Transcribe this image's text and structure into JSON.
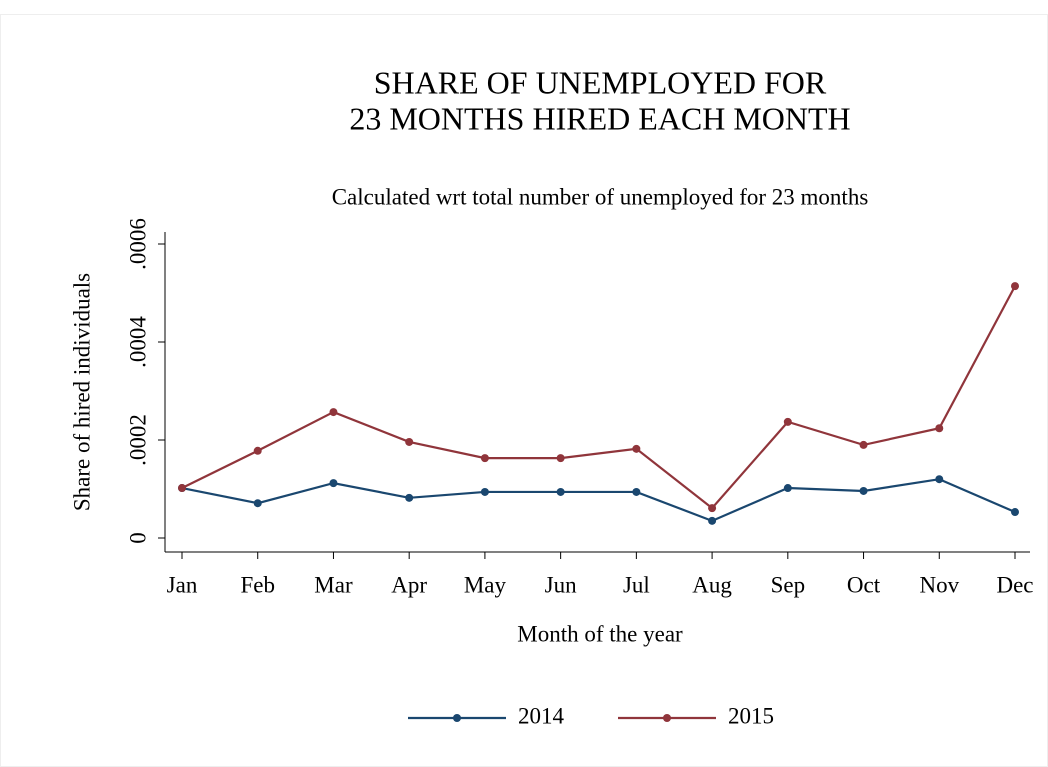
{
  "chart_data": {
    "type": "line",
    "title": [
      "SHARE OF UNEMPLOYED FOR",
      "23 MONTHS HIRED EACH MONTH"
    ],
    "subtitle": "Calculated wrt total number of unemployed for 23 months",
    "x_label": "Month of the year",
    "y_label": "Share of hired individuals",
    "categories": [
      "Jan",
      "Feb",
      "Mar",
      "Apr",
      "May",
      "Jun",
      "Jul",
      "Aug",
      "Sep",
      "Oct",
      "Nov",
      "Dec"
    ],
    "series": [
      {
        "name": "2014",
        "color": "#1a476f",
        "values": [
          0.000102,
          7.1e-05,
          0.000112,
          8.2e-05,
          9.4e-05,
          9.4e-05,
          9.4e-05,
          3.5e-05,
          0.000102,
          9.6e-05,
          0.00012,
          5.3e-05
        ]
      },
      {
        "name": "2015",
        "color": "#90353b",
        "values": [
          0.000102,
          0.000178,
          0.000257,
          0.000196,
          0.000163,
          0.000163,
          0.000182,
          6.1e-05,
          0.000237,
          0.00019,
          0.000224,
          0.000514
        ]
      }
    ],
    "ylim": [
      0,
      0.0006
    ],
    "yticks": [
      0,
      {
        "value": 0.0002,
        "label": ".0002"
      },
      {
        "value": 0.0004,
        "label": ".0004"
      },
      {
        "value": 0.0006,
        "label": ".0006"
      }
    ],
    "legend": "bottom"
  }
}
